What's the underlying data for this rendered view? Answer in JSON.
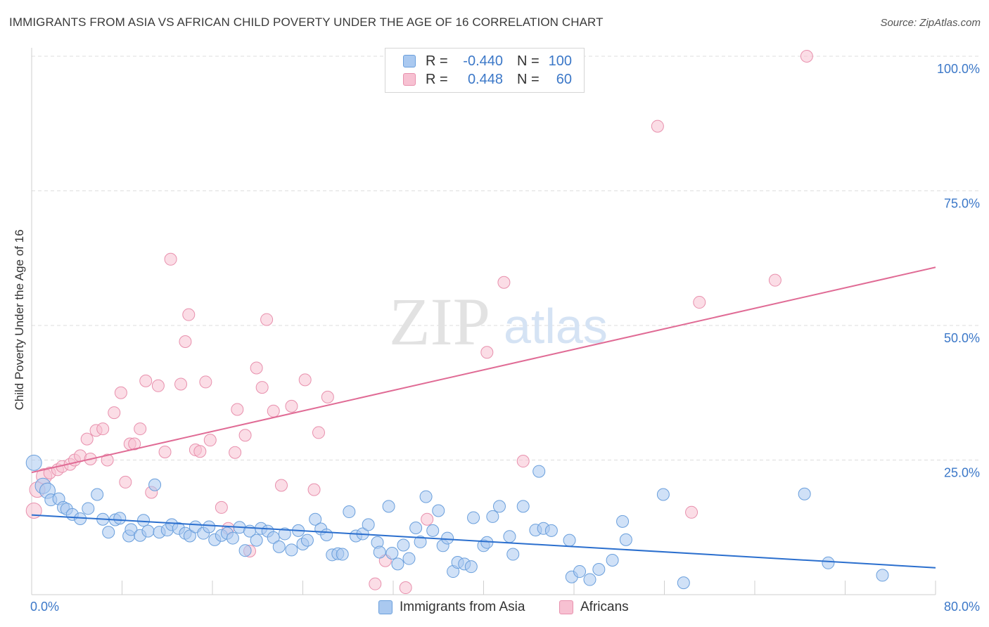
{
  "title": "IMMIGRANTS FROM ASIA VS AFRICAN CHILD POVERTY UNDER THE AGE OF 16 CORRELATION CHART",
  "source": "Source: ZipAtlas.com",
  "watermark": {
    "zip": "ZIP",
    "atlas": "atlas"
  },
  "legend": {
    "r_label": "R =",
    "n_label": "N =",
    "rows": [
      {
        "r": "-0.440",
        "n": "100"
      },
      {
        "r": "0.448",
        "n": "60"
      }
    ]
  },
  "colors": {
    "asia_fill": "#aac9f0",
    "asia_stroke": "#6a9fdc",
    "asia_line": "#2b6fce",
    "africa_fill": "#f7c1d2",
    "africa_stroke": "#e890ad",
    "africa_line": "#e06b95",
    "grid": "#dddddd",
    "axis_label": "#3c78c8"
  },
  "chart_data": {
    "type": "scatter",
    "xlabel": "",
    "ylabel": "Child Poverty Under the Age of 16",
    "xlim": [
      0,
      80
    ],
    "ylim": [
      0,
      100
    ],
    "x_tick_labels": [
      "0.0%",
      "80.0%"
    ],
    "y_tick_labels": [
      "25.0%",
      "50.0%",
      "75.0%",
      "100.0%"
    ],
    "y_ticks": [
      25,
      50,
      75,
      100
    ],
    "grid": "horizontal dashed",
    "series": [
      {
        "name": "Immigrants from Asia",
        "trend": {
          "x": [
            0,
            80
          ],
          "y": [
            14.8,
            5.0
          ]
        },
        "points": [
          [
            0.2,
            24.5
          ],
          [
            1.0,
            20.2
          ],
          [
            1.4,
            19.3
          ],
          [
            1.7,
            17.6
          ],
          [
            2.4,
            17.8
          ],
          [
            2.8,
            16.2
          ],
          [
            3.1,
            15.9
          ],
          [
            3.6,
            14.9
          ],
          [
            4.3,
            14.1
          ],
          [
            5.0,
            16.0
          ],
          [
            5.8,
            18.6
          ],
          [
            6.3,
            14.0
          ],
          [
            6.8,
            11.6
          ],
          [
            7.4,
            13.9
          ],
          [
            7.8,
            14.2
          ],
          [
            8.6,
            10.9
          ],
          [
            8.8,
            12.1
          ],
          [
            9.6,
            11.0
          ],
          [
            9.9,
            13.8
          ],
          [
            10.3,
            11.8
          ],
          [
            10.9,
            20.4
          ],
          [
            11.3,
            11.6
          ],
          [
            12.0,
            12.0
          ],
          [
            12.4,
            13.0
          ],
          [
            13.0,
            12.3
          ],
          [
            13.6,
            11.4
          ],
          [
            14.0,
            10.9
          ],
          [
            14.5,
            12.6
          ],
          [
            15.2,
            11.4
          ],
          [
            15.7,
            12.6
          ],
          [
            16.2,
            10.2
          ],
          [
            16.8,
            11.0
          ],
          [
            17.3,
            11.4
          ],
          [
            17.8,
            10.5
          ],
          [
            18.4,
            12.5
          ],
          [
            18.9,
            8.2
          ],
          [
            19.3,
            11.8
          ],
          [
            19.9,
            10.1
          ],
          [
            20.3,
            12.3
          ],
          [
            20.9,
            11.8
          ],
          [
            21.4,
            10.6
          ],
          [
            21.9,
            8.9
          ],
          [
            22.4,
            11.3
          ],
          [
            23.0,
            8.3
          ],
          [
            23.6,
            11.9
          ],
          [
            24.0,
            9.4
          ],
          [
            24.4,
            10.1
          ],
          [
            25.1,
            14.0
          ],
          [
            25.6,
            12.2
          ],
          [
            26.1,
            11.1
          ],
          [
            26.6,
            7.4
          ],
          [
            27.1,
            7.6
          ],
          [
            27.5,
            7.5
          ],
          [
            28.1,
            15.4
          ],
          [
            28.7,
            10.9
          ],
          [
            29.3,
            11.3
          ],
          [
            29.8,
            13.0
          ],
          [
            30.6,
            9.7
          ],
          [
            30.8,
            7.9
          ],
          [
            31.6,
            16.4
          ],
          [
            31.9,
            7.7
          ],
          [
            32.4,
            5.7
          ],
          [
            32.9,
            9.2
          ],
          [
            33.4,
            6.7
          ],
          [
            34.0,
            12.4
          ],
          [
            34.4,
            9.8
          ],
          [
            34.9,
            18.2
          ],
          [
            35.5,
            11.9
          ],
          [
            36.0,
            15.6
          ],
          [
            36.4,
            9.1
          ],
          [
            36.8,
            10.5
          ],
          [
            37.3,
            4.3
          ],
          [
            37.7,
            6.0
          ],
          [
            38.3,
            5.7
          ],
          [
            38.9,
            5.2
          ],
          [
            39.1,
            14.3
          ],
          [
            40.0,
            9.1
          ],
          [
            40.3,
            9.7
          ],
          [
            40.8,
            14.5
          ],
          [
            41.4,
            16.4
          ],
          [
            42.3,
            10.8
          ],
          [
            42.6,
            7.5
          ],
          [
            43.5,
            16.4
          ],
          [
            44.6,
            12.0
          ],
          [
            44.9,
            22.9
          ],
          [
            45.3,
            12.3
          ],
          [
            46.0,
            11.9
          ],
          [
            47.6,
            10.1
          ],
          [
            47.8,
            3.3
          ],
          [
            48.5,
            4.3
          ],
          [
            49.4,
            2.8
          ],
          [
            50.2,
            4.7
          ],
          [
            51.4,
            6.4
          ],
          [
            52.3,
            13.6
          ],
          [
            52.6,
            10.2
          ],
          [
            55.9,
            18.6
          ],
          [
            57.7,
            2.2
          ],
          [
            68.4,
            18.7
          ],
          [
            70.5,
            5.9
          ],
          [
            75.3,
            3.6
          ]
        ]
      },
      {
        "name": "Africans",
        "trend": {
          "x": [
            0,
            80
          ],
          "y": [
            22.7,
            60.8
          ]
        },
        "points": [
          [
            0.2,
            15.6
          ],
          [
            0.5,
            19.5
          ],
          [
            1.1,
            22.0
          ],
          [
            1.6,
            22.6
          ],
          [
            2.3,
            23.2
          ],
          [
            2.7,
            23.8
          ],
          [
            3.4,
            24.2
          ],
          [
            3.8,
            25.0
          ],
          [
            4.3,
            25.8
          ],
          [
            4.9,
            28.9
          ],
          [
            5.2,
            25.2
          ],
          [
            5.7,
            30.5
          ],
          [
            6.3,
            30.8
          ],
          [
            6.7,
            25.0
          ],
          [
            7.3,
            33.8
          ],
          [
            7.9,
            37.5
          ],
          [
            8.3,
            20.9
          ],
          [
            8.7,
            28.0
          ],
          [
            9.1,
            28.0
          ],
          [
            9.6,
            30.8
          ],
          [
            10.1,
            39.7
          ],
          [
            10.6,
            19.0
          ],
          [
            11.2,
            38.8
          ],
          [
            11.8,
            26.5
          ],
          [
            12.3,
            62.3
          ],
          [
            13.2,
            39.1
          ],
          [
            13.6,
            47.0
          ],
          [
            13.9,
            52.0
          ],
          [
            14.5,
            26.9
          ],
          [
            14.9,
            26.6
          ],
          [
            15.4,
            39.5
          ],
          [
            15.8,
            28.7
          ],
          [
            16.8,
            16.2
          ],
          [
            17.4,
            12.3
          ],
          [
            18.0,
            26.4
          ],
          [
            18.2,
            34.4
          ],
          [
            18.9,
            29.6
          ],
          [
            19.3,
            8.1
          ],
          [
            19.9,
            42.1
          ],
          [
            20.4,
            38.5
          ],
          [
            20.8,
            51.1
          ],
          [
            21.4,
            34.1
          ],
          [
            22.1,
            20.3
          ],
          [
            23.0,
            35.0
          ],
          [
            24.2,
            39.9
          ],
          [
            25.0,
            19.5
          ],
          [
            25.4,
            30.1
          ],
          [
            26.2,
            36.7
          ],
          [
            30.4,
            2.0
          ],
          [
            31.3,
            6.3
          ],
          [
            33.1,
            1.3
          ],
          [
            35.0,
            14.0
          ],
          [
            40.3,
            45.0
          ],
          [
            41.8,
            58.0
          ],
          [
            43.5,
            24.8
          ],
          [
            55.4,
            87.0
          ],
          [
            58.4,
            15.3
          ],
          [
            59.1,
            54.3
          ],
          [
            65.8,
            58.4
          ],
          [
            68.6,
            100.0
          ]
        ]
      }
    ]
  },
  "bottom_legend": [
    "Immigrants from Asia",
    "Africans"
  ]
}
